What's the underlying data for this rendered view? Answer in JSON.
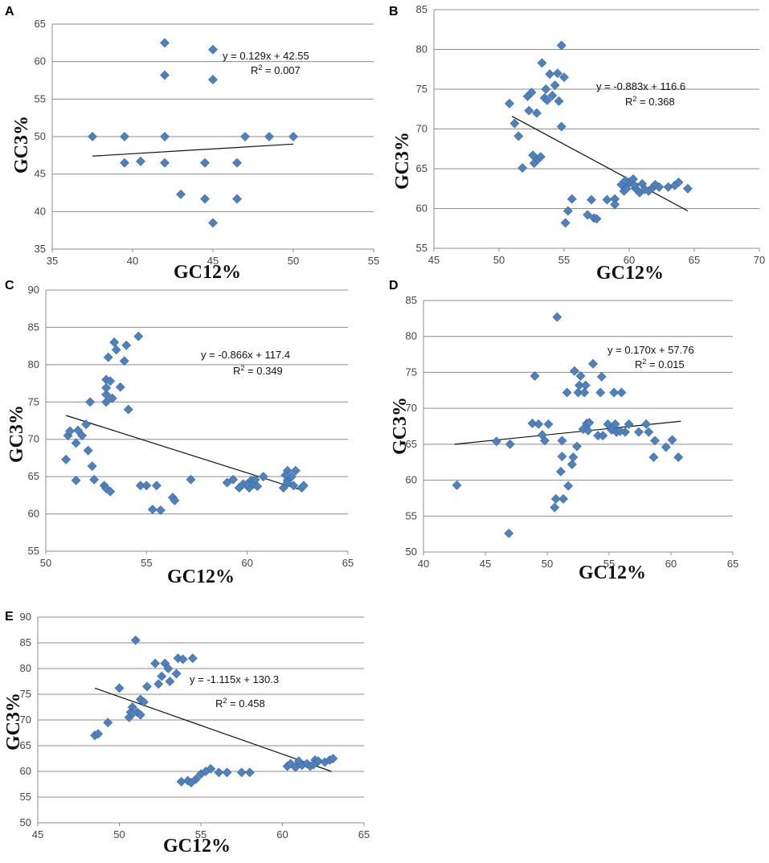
{
  "chart_data": [
    {
      "panel": "A",
      "type": "scatter",
      "xlabel": "GC12%",
      "ylabel": "GC3%",
      "xlim": [
        35,
        55
      ],
      "ylim": [
        35,
        65
      ],
      "xticks": [
        35,
        40,
        45,
        50,
        55
      ],
      "yticks": [
        35,
        40,
        45,
        50,
        55,
        60,
        65
      ],
      "equation": "y = 0.129x + 42.55",
      "r2_label": "R",
      "r2_value": " = 0.007",
      "trend": [
        [
          37.5,
          47.4
        ],
        [
          50,
          49.0
        ]
      ],
      "points": [
        [
          37.5,
          50
        ],
        [
          39.5,
          50
        ],
        [
          39.5,
          46.5
        ],
        [
          40.5,
          46.7
        ],
        [
          42,
          46.5
        ],
        [
          42,
          50
        ],
        [
          42,
          58.2
        ],
        [
          42,
          62.5
        ],
        [
          43,
          42.3
        ],
        [
          44.5,
          41.7
        ],
        [
          44.5,
          46.5
        ],
        [
          45,
          38.5
        ],
        [
          45,
          57.6
        ],
        [
          45,
          61.6
        ],
        [
          46.5,
          41.7
        ],
        [
          46.5,
          46.5
        ],
        [
          47,
          50
        ],
        [
          48.5,
          50
        ],
        [
          50,
          50
        ]
      ]
    },
    {
      "panel": "B",
      "type": "scatter",
      "xlabel": "GC12%",
      "ylabel": "GC3%",
      "xlim": [
        45,
        70
      ],
      "ylim": [
        55,
        85
      ],
      "xticks": [
        45,
        50,
        55,
        60,
        65,
        70
      ],
      "yticks": [
        55,
        60,
        65,
        70,
        75,
        80,
        85
      ],
      "equation": "y = -0.883x + 116.6",
      "r2_label": "R",
      "r2_value": " = 0.368",
      "trend": [
        [
          51,
          71.6
        ],
        [
          64.5,
          59.7
        ]
      ],
      "points": [
        [
          50.8,
          73.2
        ],
        [
          51.2,
          70.7
        ],
        [
          51.5,
          69.1
        ],
        [
          51.8,
          65.1
        ],
        [
          52.2,
          74.1
        ],
        [
          52.3,
          72.3
        ],
        [
          52.5,
          74.6
        ],
        [
          52.6,
          66.7
        ],
        [
          52.7,
          65.7
        ],
        [
          52.9,
          72.0
        ],
        [
          53.0,
          66.2
        ],
        [
          53.2,
          66.5
        ],
        [
          53.3,
          78.3
        ],
        [
          53.5,
          73.9
        ],
        [
          53.6,
          75.0
        ],
        [
          53.7,
          73.6
        ],
        [
          53.9,
          76.9
        ],
        [
          54.1,
          74.2
        ],
        [
          54.3,
          75.5
        ],
        [
          54.5,
          77.0
        ],
        [
          54.6,
          73.5
        ],
        [
          54.8,
          80.5
        ],
        [
          54.8,
          70.3
        ],
        [
          55.0,
          76.5
        ],
        [
          55.1,
          58.2
        ],
        [
          55.3,
          59.7
        ],
        [
          55.6,
          61.2
        ],
        [
          56.8,
          59.2
        ],
        [
          57.1,
          61.1
        ],
        [
          57.3,
          58.8
        ],
        [
          57.5,
          58.7
        ],
        [
          58.3,
          61.1
        ],
        [
          58.9,
          61.2
        ],
        [
          59.4,
          63.0
        ],
        [
          59.6,
          62.2
        ],
        [
          59.8,
          62.5
        ],
        [
          60.0,
          63.3
        ],
        [
          60.3,
          63.7
        ],
        [
          60.5,
          62.5
        ],
        [
          60.8,
          62.0
        ],
        [
          61.0,
          63.1
        ],
        [
          61.2,
          62.4
        ],
        [
          61.5,
          62.2
        ],
        [
          61.8,
          62.6
        ],
        [
          62.0,
          63.0
        ],
        [
          62.3,
          62.7
        ],
        [
          63.0,
          62.7
        ],
        [
          63.5,
          62.9
        ],
        [
          63.8,
          63.3
        ],
        [
          64.5,
          62.5
        ],
        [
          58.9,
          60.5
        ],
        [
          60.4,
          62.9
        ],
        [
          59.7,
          63.5
        ]
      ]
    },
    {
      "panel": "C",
      "type": "scatter",
      "xlabel": "GC12%",
      "ylabel": "GC3%",
      "xlim": [
        50,
        65
      ],
      "ylim": [
        55,
        90
      ],
      "xticks": [
        50,
        55,
        60,
        65
      ],
      "yticks": [
        55,
        60,
        65,
        70,
        75,
        80,
        85,
        90
      ],
      "equation": "y = -0.866x + 117.4",
      "r2_label": "R",
      "r2_value": " = 0.349",
      "trend": [
        [
          51,
          73.2
        ],
        [
          62.8,
          63.1
        ]
      ],
      "points": [
        [
          51.0,
          67.3
        ],
        [
          51.1,
          70.5
        ],
        [
          51.2,
          71.1
        ],
        [
          51.5,
          64.5
        ],
        [
          51.5,
          69.5
        ],
        [
          51.6,
          71.2
        ],
        [
          51.8,
          70.5
        ],
        [
          52.0,
          72.0
        ],
        [
          52.1,
          68.5
        ],
        [
          52.2,
          75.0
        ],
        [
          52.3,
          66.4
        ],
        [
          52.4,
          64.6
        ],
        [
          52.9,
          63.8
        ],
        [
          53.0,
          63.4
        ],
        [
          53.0,
          75.0
        ],
        [
          53.0,
          76.0
        ],
        [
          53.0,
          76.9
        ],
        [
          53.0,
          78.0
        ],
        [
          53.1,
          81.0
        ],
        [
          53.2,
          63.0
        ],
        [
          53.2,
          77.8
        ],
        [
          53.4,
          83.0
        ],
        [
          53.5,
          82.0
        ],
        [
          53.7,
          77.0
        ],
        [
          53.9,
          80.5
        ],
        [
          54.0,
          82.6
        ],
        [
          54.1,
          74.0
        ],
        [
          54.6,
          83.8
        ],
        [
          54.7,
          63.8
        ],
        [
          55.0,
          63.8
        ],
        [
          55.3,
          60.6
        ],
        [
          55.5,
          63.8
        ],
        [
          55.7,
          60.5
        ],
        [
          56.3,
          62.2
        ],
        [
          56.4,
          61.8
        ],
        [
          57.2,
          64.6
        ],
        [
          59.0,
          64.2
        ],
        [
          59.3,
          64.6
        ],
        [
          59.6,
          63.5
        ],
        [
          59.8,
          64.0
        ],
        [
          60.1,
          63.5
        ],
        [
          60.2,
          64.5
        ],
        [
          60.3,
          64.0
        ],
        [
          60.4,
          64.6
        ],
        [
          60.5,
          63.7
        ],
        [
          60.8,
          65.0
        ],
        [
          61.8,
          63.5
        ],
        [
          62.0,
          64.5
        ],
        [
          62.0,
          65.8
        ],
        [
          62.2,
          65.0
        ],
        [
          62.3,
          63.8
        ],
        [
          62.4,
          65.8
        ],
        [
          62.7,
          63.5
        ],
        [
          62.8,
          63.8
        ],
        [
          62.0,
          64.2
        ],
        [
          61.9,
          65.2
        ],
        [
          60.0,
          64.0
        ],
        [
          53.3,
          75.5
        ]
      ]
    },
    {
      "panel": "D",
      "type": "scatter",
      "xlabel": "GC12%",
      "ylabel": "GC3%",
      "xlim": [
        40,
        65
      ],
      "ylim": [
        50,
        85
      ],
      "xticks": [
        40,
        45,
        50,
        55,
        60,
        65
      ],
      "yticks": [
        50,
        55,
        60,
        65,
        70,
        75,
        80,
        85
      ],
      "equation": "y = 0.170x + 57.76",
      "r2_label": "R",
      "r2_value": " = 0.015",
      "trend": [
        [
          42.5,
          65.0
        ],
        [
          60.8,
          68.2
        ]
      ],
      "points": [
        [
          42.7,
          59.3
        ],
        [
          45.9,
          65.4
        ],
        [
          46.9,
          52.6
        ],
        [
          47.0,
          65.0
        ],
        [
          48.8,
          67.9
        ],
        [
          49.0,
          74.5
        ],
        [
          49.3,
          67.8
        ],
        [
          49.6,
          66.3
        ],
        [
          49.8,
          65.5
        ],
        [
          50.1,
          67.8
        ],
        [
          50.6,
          56.2
        ],
        [
          50.7,
          57.4
        ],
        [
          50.8,
          82.7
        ],
        [
          51.1,
          61.2
        ],
        [
          51.2,
          63.3
        ],
        [
          51.2,
          65.5
        ],
        [
          51.3,
          57.4
        ],
        [
          51.6,
          72.2
        ],
        [
          51.7,
          59.2
        ],
        [
          52.0,
          62.2
        ],
        [
          52.1,
          63.2
        ],
        [
          52.2,
          75.2
        ],
        [
          52.4,
          64.7
        ],
        [
          52.5,
          72.2
        ],
        [
          52.6,
          73.2
        ],
        [
          52.7,
          74.5
        ],
        [
          52.9,
          67.1
        ],
        [
          53.0,
          72.2
        ],
        [
          53.1,
          73.2
        ],
        [
          53.2,
          67.9
        ],
        [
          53.3,
          66.9
        ],
        [
          53.7,
          76.2
        ],
        [
          54.1,
          66.2
        ],
        [
          54.3,
          72.2
        ],
        [
          54.4,
          74.4
        ],
        [
          54.5,
          66.2
        ],
        [
          54.9,
          67.8
        ],
        [
          55.2,
          67.0
        ],
        [
          55.4,
          72.2
        ],
        [
          55.5,
          67.8
        ],
        [
          55.6,
          66.7
        ],
        [
          56.0,
          72.2
        ],
        [
          56.3,
          66.7
        ],
        [
          56.6,
          67.8
        ],
        [
          57.4,
          66.7
        ],
        [
          58.0,
          67.8
        ],
        [
          58.2,
          66.7
        ],
        [
          58.6,
          63.2
        ],
        [
          58.7,
          65.5
        ],
        [
          59.6,
          64.6
        ],
        [
          60.1,
          65.6
        ],
        [
          60.6,
          63.2
        ],
        [
          55.9,
          66.8
        ],
        [
          53.4,
          68.0
        ]
      ]
    },
    {
      "panel": "E",
      "type": "scatter",
      "xlabel": "GC12%",
      "ylabel": "GC3%",
      "xlim": [
        45,
        65
      ],
      "ylim": [
        50,
        90
      ],
      "xticks": [
        45,
        50,
        55,
        60,
        65
      ],
      "yticks": [
        50,
        55,
        60,
        65,
        70,
        75,
        80,
        85,
        90
      ],
      "equation": "y = -1.115x + 130.3",
      "r2_label": "R",
      "r2_value": " = 0.458",
      "trend": [
        [
          48.5,
          76.2
        ],
        [
          63,
          60.0
        ]
      ],
      "points": [
        [
          48.5,
          67.0
        ],
        [
          48.7,
          67.3
        ],
        [
          49.3,
          69.5
        ],
        [
          50.0,
          76.2
        ],
        [
          50.6,
          70.5
        ],
        [
          50.7,
          71.5
        ],
        [
          50.8,
          72.5
        ],
        [
          51.0,
          85.5
        ],
        [
          51.1,
          71.5
        ],
        [
          51.3,
          74.0
        ],
        [
          51.7,
          76.5
        ],
        [
          52.2,
          81.0
        ],
        [
          52.4,
          77.0
        ],
        [
          52.6,
          78.5
        ],
        [
          52.8,
          81.0
        ],
        [
          53.0,
          80.0
        ],
        [
          53.1,
          77.5
        ],
        [
          53.5,
          79.0
        ],
        [
          53.6,
          82.0
        ],
        [
          53.8,
          58.0
        ],
        [
          53.9,
          81.8
        ],
        [
          54.2,
          58.2
        ],
        [
          54.4,
          57.8
        ],
        [
          54.5,
          82.0
        ],
        [
          54.7,
          58.5
        ],
        [
          55.0,
          59.5
        ],
        [
          55.3,
          60.0
        ],
        [
          55.6,
          60.5
        ],
        [
          56.1,
          59.8
        ],
        [
          56.6,
          59.8
        ],
        [
          57.5,
          59.8
        ],
        [
          58.0,
          59.8
        ],
        [
          60.3,
          61.0
        ],
        [
          60.5,
          61.5
        ],
        [
          60.8,
          60.8
        ],
        [
          61.0,
          62.0
        ],
        [
          61.2,
          61.2
        ],
        [
          61.5,
          61.5
        ],
        [
          61.7,
          61.0
        ],
        [
          62.0,
          62.2
        ],
        [
          62.2,
          62.0
        ],
        [
          62.6,
          61.8
        ],
        [
          62.9,
          62.2
        ],
        [
          63.1,
          62.5
        ],
        [
          51.3,
          71.0
        ],
        [
          61.9,
          61.3
        ],
        [
          50.8,
          71.2
        ],
        [
          51.5,
          73.5
        ]
      ]
    }
  ]
}
